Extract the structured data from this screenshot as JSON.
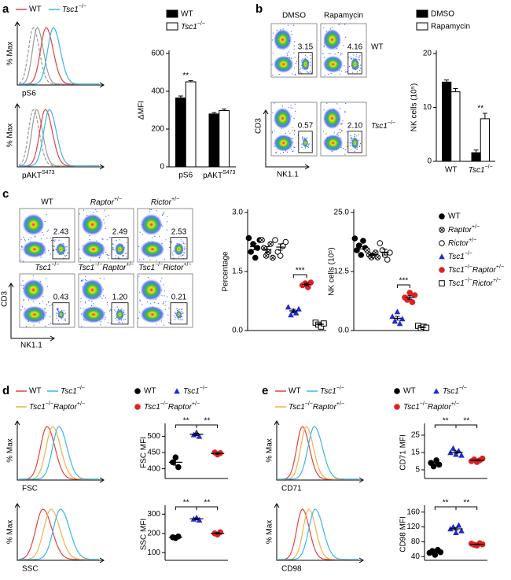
{
  "chart_data": [
    {
      "type": "bar",
      "ylabel": "ΔMFI",
      "categories": [
        "pS6",
        "pAKTS473"
      ],
      "series": [
        {
          "name": "WT",
          "color": "#000000",
          "values": [
            365,
            280
          ],
          "errors": [
            10,
            8
          ]
        },
        {
          "name": "Tsc1−/−",
          "color": "#ffffff",
          "values": [
            450,
            298
          ],
          "errors": [
            6,
            8
          ]
        }
      ],
      "ylim": [
        0,
        600
      ],
      "yticks": [
        0,
        200,
        400,
        600
      ],
      "annotations": [
        {
          "text": "**",
          "category": 0
        }
      ]
    },
    {
      "type": "bar",
      "ylabel": "NK cells (10⁵)",
      "categories": [
        "WT",
        "Tsc1−/−"
      ],
      "series": [
        {
          "name": "DMSO",
          "color": "#000000",
          "values": [
            14.7,
            1.6
          ],
          "errors": [
            0.4,
            0.5
          ]
        },
        {
          "name": "Rapamycin",
          "color": "#ffffff",
          "values": [
            12.9,
            7.9
          ],
          "errors": [
            0.6,
            1.0
          ]
        }
      ],
      "ylim": [
        0,
        20
      ],
      "yticks": [
        0,
        10,
        20
      ],
      "annotations": [
        {
          "text": "**",
          "category": 1
        }
      ]
    },
    {
      "type": "dot",
      "ylabel": "Percentage",
      "ylim": [
        0,
        3
      ],
      "yticks": [
        {
          "value": 0,
          "label": "0.0"
        },
        1.5,
        {
          "value": 3,
          "label": "3.0"
        }
      ],
      "series": [
        {
          "name": "WT",
          "color": "#000000",
          "marker": "circle",
          "values": [
            2.35,
            2.0,
            2.2,
            1.85,
            2.1,
            2.3
          ],
          "mean": 2.13,
          "sem": 0.08
        },
        {
          "name": "Raptor+/−",
          "color": "#000000",
          "marker": "circle-x",
          "values": [
            2.3,
            2.1,
            1.9,
            2.0,
            2.2,
            1.85
          ],
          "mean": 2.06,
          "sem": 0.07
        },
        {
          "name": "Rictor+/−",
          "color": "#000000",
          "marker": "circle-open",
          "values": [
            2.3,
            2.0,
            1.9,
            2.15,
            2.25
          ],
          "mean": 2.12,
          "sem": 0.08
        },
        {
          "name": "Tsc1−/−",
          "color": "#1f2bd0",
          "marker": "triangle",
          "values": [
            0.6,
            0.4,
            0.5,
            0.45,
            0.55
          ],
          "mean": 0.5,
          "sem": 0.04
        },
        {
          "name": "Tsc1−/−Raptor+/−",
          "color": "#e02020",
          "marker": "circle",
          "values": [
            1.15,
            1.2,
            1.1,
            1.22
          ],
          "mean": 1.17,
          "sem": 0.03
        },
        {
          "name": "Tsc1−/−Rictor+/−",
          "color": "#000000",
          "marker": "square-open",
          "values": [
            0.2,
            0.15,
            0.1,
            0.18
          ],
          "mean": 0.16,
          "sem": 0.02
        }
      ],
      "annotations": [
        {
          "text": "***",
          "from": 3,
          "to": 4
        }
      ]
    },
    {
      "type": "dot",
      "ylabel": "NK cells (10⁵)",
      "ylim": [
        0,
        25
      ],
      "yticks": [
        {
          "value": 0,
          "label": "0.0"
        },
        12.5,
        {
          "value": 25,
          "label": "25.0"
        }
      ],
      "series": [
        {
          "color": "#000000",
          "marker": "circle",
          "values": [
            19.5,
            17,
            18,
            16,
            19,
            17.5
          ],
          "mean": 17.8,
          "sem": 0.5
        },
        {
          "color": "#000000",
          "marker": "circle-x",
          "values": [
            17,
            16,
            15.5,
            16,
            16.5,
            15.5
          ],
          "mean": 16.1,
          "sem": 0.2
        },
        {
          "color": "#000000",
          "marker": "circle-open",
          "values": [
            18.5,
            17,
            16,
            15,
            16.5
          ],
          "mean": 16.6,
          "sem": 0.6
        },
        {
          "color": "#1f2bd0",
          "marker": "triangle",
          "values": [
            3,
            2,
            4,
            1.5,
            2.5
          ],
          "mean": 2.6,
          "sem": 0.4
        },
        {
          "color": "#e02020",
          "marker": "circle",
          "values": [
            7,
            6.5,
            8,
            6,
            7.5
          ],
          "mean": 7.0,
          "sem": 0.35
        },
        {
          "color": "#000000",
          "marker": "square-open",
          "values": [
            1,
            0.5,
            0.8,
            0.6
          ],
          "mean": 0.7,
          "sem": 0.1
        }
      ],
      "annotations": [
        {
          "text": "***",
          "from": 3,
          "to": 4
        }
      ]
    },
    {
      "type": "dot",
      "ylabel": "FSC MFI",
      "ylim": [
        370,
        530
      ],
      "yticks": [
        400,
        450,
        500
      ],
      "series": [
        {
          "name": "WT",
          "color": "#000000",
          "marker": "circle",
          "values": [
            420,
            435,
            405
          ],
          "mean": 420,
          "sem": 9
        },
        {
          "name": "Tsc1−/−",
          "color": "#1f2bd0",
          "marker": "triangle",
          "values": [
            505,
            512,
            500
          ],
          "mean": 506,
          "sem": 3.5
        },
        {
          "name": "Tsc1−/−Raptor+/−",
          "color": "#e02020",
          "marker": "circle",
          "values": [
            450,
            444,
            448
          ],
          "mean": 447,
          "sem": 2
        }
      ],
      "annotations": [
        {
          "text": "**",
          "from": 0,
          "to": 1
        },
        {
          "text": "**",
          "from": 1,
          "to": 2
        }
      ]
    },
    {
      "type": "dot",
      "ylabel": "SSC MFI",
      "ylim": [
        60,
        330
      ],
      "yticks": [
        100,
        200,
        300
      ],
      "series": [
        {
          "color": "#000000",
          "marker": "circle",
          "values": [
            180,
            176,
            184
          ],
          "mean": 180,
          "sem": 2
        },
        {
          "color": "#1f2bd0",
          "marker": "triangle",
          "values": [
            275,
            282,
            270
          ],
          "mean": 276,
          "sem": 3.5
        },
        {
          "color": "#e02020",
          "marker": "circle",
          "values": [
            200,
            194,
            206
          ],
          "mean": 200,
          "sem": 3.5
        }
      ],
      "annotations": [
        {
          "text": "**",
          "from": 0,
          "to": 1
        },
        {
          "text": "**",
          "from": 1,
          "to": 2
        }
      ]
    },
    {
      "type": "dot",
      "ylabel": "CD71 MFI",
      "ylim": [
        0,
        30
      ],
      "yticks": [
        5,
        15,
        25
      ],
      "series": [
        {
          "name": "WT",
          "color": "#000000",
          "marker": "circle",
          "values": [
            9,
            7,
            10.5,
            8
          ],
          "mean": 8.6,
          "sem": 0.8
        },
        {
          "name": "Tsc1−/−",
          "color": "#1f2bd0",
          "marker": "triangle",
          "values": [
            15,
            17.5,
            14,
            16,
            13.5
          ],
          "mean": 15.2,
          "sem": 0.7
        },
        {
          "name": "Tsc1−/−Raptor+/−",
          "color": "#e02020",
          "marker": "circle",
          "values": [
            10,
            11,
            9.5,
            10.5,
            11.5
          ],
          "mean": 10.5,
          "sem": 0.35
        }
      ],
      "annotations": [
        {
          "text": "**",
          "from": 0,
          "to": 1
        },
        {
          "text": "**",
          "from": 1,
          "to": 2
        }
      ]
    },
    {
      "type": "dot",
      "ylabel": "CD98 MFI",
      "ylim": [
        30,
        170
      ],
      "yticks": [
        40,
        80,
        120,
        160
      ],
      "series": [
        {
          "color": "#000000",
          "marker": "circle",
          "values": [
            50,
            55,
            45,
            58,
            52
          ],
          "mean": 52,
          "sem": 2.2
        },
        {
          "color": "#1f2bd0",
          "marker": "triangle",
          "values": [
            115,
            120,
            105,
            125,
            110
          ],
          "mean": 115,
          "sem": 3.5
        },
        {
          "color": "#e02020",
          "marker": "circle",
          "values": [
            75,
            72,
            70,
            76,
            73
          ],
          "mean": 73,
          "sem": 1.1
        }
      ],
      "annotations": [
        {
          "text": "**",
          "from": 0,
          "to": 1
        },
        {
          "text": "**",
          "from": 1,
          "to": 2
        }
      ]
    }
  ],
  "panels": {
    "a": {
      "label": "a",
      "legend": [
        {
          "name": "WT",
          "color": "#e8413a"
        },
        {
          "name": "Tsc1−/−",
          "color": "#3ab6e8"
        }
      ],
      "ylabel": "% Max",
      "xlabels": [
        "pS6",
        "pAKTS473"
      ]
    },
    "b": {
      "label": "b",
      "columns": [
        "DMSO",
        "Rapamycin"
      ],
      "rows": [
        "WT",
        "Tsc1−/−"
      ],
      "gates": [
        "3.15",
        "4.16",
        "0.57",
        "2.10"
      ],
      "yaxis": "CD3",
      "xaxis": "NK1.1"
    },
    "c": {
      "label": "c",
      "columns": [
        "WT",
        "Raptor+/−",
        "Rictor+/−",
        "Tsc1−/−",
        "Tsc1−/−Raptor+/−",
        "Tsc1−/−Rictor+/−"
      ],
      "gates": [
        "2.43",
        "2.49",
        "2.53",
        "0.43",
        "1.20",
        "0.21"
      ],
      "yaxis": "CD3",
      "xaxis": "NK1.1"
    },
    "d": {
      "label": "d",
      "legend": [
        {
          "name": "WT",
          "color": "#e8413a"
        },
        {
          "name": "Tsc1−/−",
          "color": "#3ab6e8"
        },
        {
          "name": "Tsc1−/−Raptor+/−",
          "color": "#f2b04a"
        }
      ],
      "ylabel": "% Max",
      "xlabels": [
        "FSC",
        "SSC"
      ]
    },
    "e": {
      "label": "e",
      "legend": [
        {
          "name": "WT",
          "color": "#e8413a"
        },
        {
          "name": "Tsc1−/−",
          "color": "#3ab6e8"
        },
        {
          "name": "Tsc1−/−Raptor+/−",
          "color": "#f2b04a"
        }
      ],
      "ylabel": "% Max",
      "xlabels": [
        "CD71",
        "CD98"
      ]
    }
  }
}
